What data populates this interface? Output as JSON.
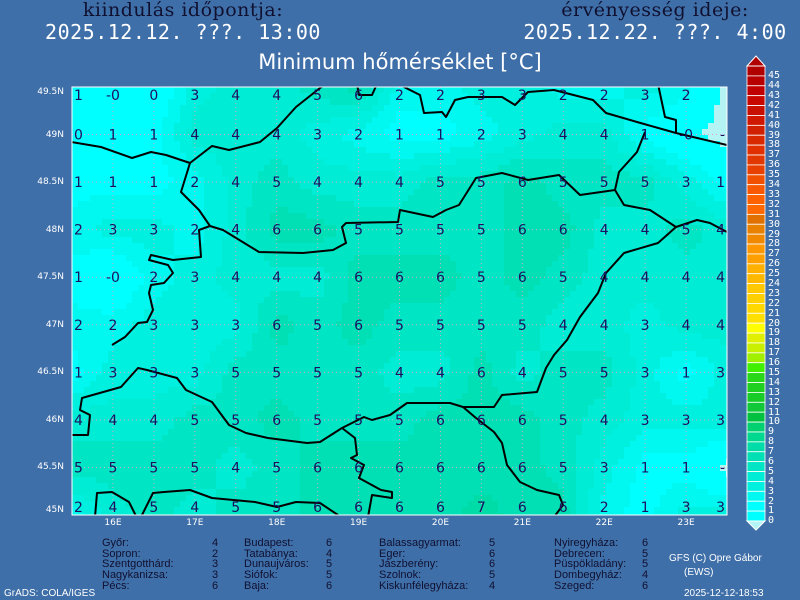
{
  "header": {
    "start_label": "kiindulás időpontja:",
    "start_value": "2025.12.12. ???. 13:00",
    "valid_label": "érvényesség ideje:",
    "valid_value": "2025.12.22. ???. 4:00"
  },
  "map": {
    "title": "Minimum hőmérséklet [°C]",
    "lat_labels": [
      "49.5N",
      "49N",
      "48.5N",
      "48N",
      "47.5N",
      "47N",
      "46.5N",
      "46N",
      "45.5N",
      "45N"
    ],
    "lon_labels": [
      "16E",
      "17E",
      "18E",
      "19E",
      "20E",
      "21E",
      "22E",
      "23E"
    ],
    "lon_range": [
      15.5,
      23.5
    ],
    "lat_range": [
      45,
      49.5
    ],
    "grid_step_deg": 0.5,
    "grid_values": [
      [
        "1",
        "-0",
        "0",
        "3",
        "4",
        "4",
        "5",
        "6",
        "2",
        "2",
        "3",
        "3",
        "2",
        "2",
        "3",
        "2",
        ""
      ],
      [
        "0",
        "1",
        "1",
        "4",
        "4",
        "4",
        "3",
        "2",
        "1",
        "1",
        "2",
        "3",
        "4",
        "4",
        "1",
        "-0",
        "-"
      ],
      [
        "1",
        "1",
        "1",
        "2",
        "4",
        "5",
        "4",
        "4",
        "4",
        "5",
        "5",
        "6",
        "5",
        "5",
        "5",
        "3",
        "1"
      ],
      [
        "2",
        "3",
        "3",
        "2",
        "4",
        "6",
        "6",
        "5",
        "5",
        "5",
        "5",
        "6",
        "6",
        "4",
        "4",
        "5",
        "4"
      ],
      [
        "1",
        "-0",
        "2",
        "3",
        "4",
        "4",
        "4",
        "6",
        "6",
        "6",
        "5",
        "6",
        "5",
        "4",
        "4",
        "4",
        "4"
      ],
      [
        "2",
        "2",
        "3",
        "3",
        "3",
        "6",
        "5",
        "6",
        "5",
        "5",
        "5",
        "5",
        "4",
        "4",
        "3",
        "4",
        "4"
      ],
      [
        "1",
        "3",
        "3",
        "3",
        "5",
        "5",
        "5",
        "5",
        "4",
        "4",
        "6",
        "4",
        "5",
        "5",
        "3",
        "1",
        "3"
      ],
      [
        "4",
        "4",
        "4",
        "5",
        "5",
        "6",
        "5",
        "5",
        "5",
        "6",
        "6",
        "6",
        "5",
        "4",
        "3",
        "3",
        "3"
      ],
      [
        "5",
        "5",
        "5",
        "5",
        "4",
        "5",
        "6",
        "6",
        "6",
        "6",
        "6",
        "6",
        "5",
        "3",
        "1",
        "1",
        "-"
      ],
      [
        "2",
        "4",
        "5",
        "4",
        "5",
        "5",
        "6",
        "6",
        "6",
        "6",
        "7",
        "6",
        "6",
        "2",
        "1",
        "3",
        "3"
      ]
    ],
    "colors": {
      "background": "#3f6fa8",
      "border_lines": "#000000",
      "value_text": "#1a1060",
      "gridlines": "#e0a0c8",
      "below_zero": "#b4f4f4"
    }
  },
  "legend": {
    "labels": [
      "45",
      "44",
      "43",
      "42",
      "41",
      "40",
      "39",
      "38",
      "37",
      "36",
      "35",
      "34",
      "33",
      "32",
      "31",
      "30",
      "29",
      "28",
      "27",
      "26",
      "25",
      "24",
      "23",
      "22",
      "21",
      "20",
      "19",
      "18",
      "17",
      "16",
      "15",
      "14",
      "13",
      "12",
      "11",
      "10",
      "9",
      "8",
      "7",
      "6",
      "5",
      "4",
      "3",
      "2",
      "1",
      "0"
    ],
    "colors": [
      "#b00000",
      "#b80000",
      "#c00000",
      "#c80800",
      "#c81000",
      "#d01800",
      "#d02000",
      "#d82800",
      "#e03000",
      "#e03800",
      "#e84000",
      "#f05000",
      "#f85800",
      "#ff6000",
      "#ff6800",
      "#e07000",
      "#e88000",
      "#f08800",
      "#ff9800",
      "#ffa000",
      "#ffb000",
      "#ffb800",
      "#ffc800",
      "#ffd000",
      "#ffd800",
      "#ffe000",
      "#ffff00",
      "#e0f000",
      "#c8f000",
      "#a0f000",
      "#40f000",
      "#28d818",
      "#20d020",
      "#18cc28",
      "#10c838",
      "#00c040",
      "#00d070",
      "#00d890",
      "#00dca8",
      "#00e0b4",
      "#00e6c4",
      "#00ecd4",
      "#00f0e0",
      "#00f8f0",
      "#00ffff",
      "#00ffff"
    ],
    "top_arrow_color": "#b00000",
    "bottom_arrow_color": "#b4f4f4"
  },
  "cities": [
    [
      {
        "name": "Győr:",
        "value": "4"
      },
      {
        "name": "Sopron:",
        "value": "2"
      },
      {
        "name": "Szentgotthárd:",
        "value": "3"
      },
      {
        "name": "Nagykanizsa:",
        "value": "3"
      },
      {
        "name": "Pécs:",
        "value": "6"
      }
    ],
    [
      {
        "name": "Budapest:",
        "value": "6"
      },
      {
        "name": "Tatabánya:",
        "value": "4"
      },
      {
        "name": "Dunaujváros:",
        "value": "5"
      },
      {
        "name": "Siófok:",
        "value": "5"
      },
      {
        "name": "Baja:",
        "value": "6"
      }
    ],
    [
      {
        "name": "Balassagyarmat:",
        "value": "5"
      },
      {
        "name": "Eger:",
        "value": "6"
      },
      {
        "name": "Jászberény:",
        "value": "6"
      },
      {
        "name": "Szolnok:",
        "value": "5"
      },
      {
        "name": "Kiskunfélegyháza:",
        "value": "4"
      }
    ],
    [
      {
        "name": "Nyiregyháza:",
        "value": "6"
      },
      {
        "name": "Debrecen:",
        "value": "5"
      },
      {
        "name": "Püspökladány:",
        "value": "5"
      },
      {
        "name": "Dombegyház:",
        "value": "4"
      },
      {
        "name": "Szeged:",
        "value": "6"
      }
    ]
  ],
  "footer": {
    "grads": "GrADS: COLA/IGES",
    "credit_line1": "GFS (C) Opre Gábor",
    "credit_line2": "(EWS)",
    "timestamp": "2025-12-12-18:53"
  }
}
